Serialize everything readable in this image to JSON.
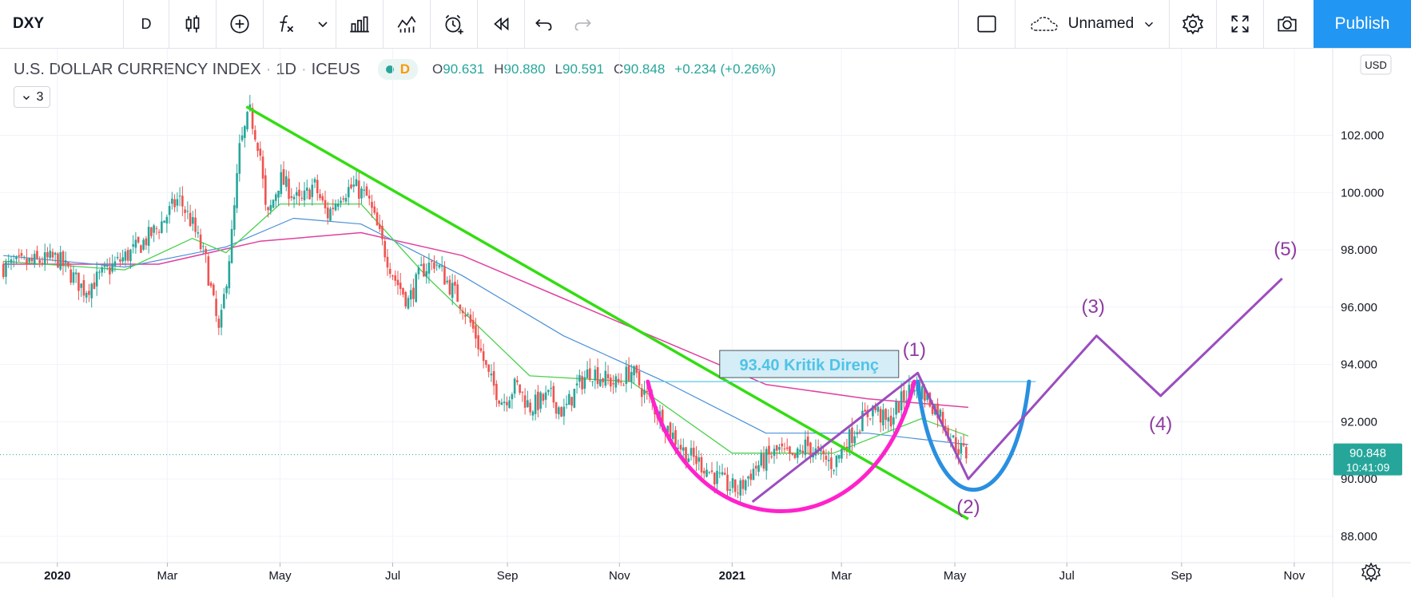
{
  "toolbar": {
    "symbol": "DXY",
    "interval": "D",
    "layout_name": "Unnamed",
    "publish_label": "Publish",
    "icons": [
      "bar-style-icon",
      "compare-add-icon",
      "indicators-icon",
      "dropdown-icon",
      "financials-icon",
      "templates-icon",
      "alert-icon",
      "replay-icon",
      "undo-icon",
      "redo-icon",
      "layout-square-icon",
      "cloud-icon",
      "settings-icon",
      "fullscreen-icon",
      "camera-icon"
    ]
  },
  "legend": {
    "title": "U.S. DOLLAR CURRENCY INDEX",
    "timeframe": "1D",
    "exchange": "ICEUS",
    "sep": "·",
    "pill_letter": "D",
    "o_label": "O",
    "o_value": "90.631",
    "h_label": "H",
    "h_value": "90.880",
    "l_label": "L",
    "l_value": "90.591",
    "c_label": "C",
    "c_value": "90.848",
    "change": "+0.234 (+0.26%)",
    "indicator_count": "3"
  },
  "chart_data": {
    "type": "candlestick",
    "currency": "USD",
    "ylim": [
      87.3,
      104.8
    ],
    "y_ticks": [
      "102.000",
      "100.000",
      "98.000",
      "96.000",
      "94.000",
      "92.000",
      "90.000",
      "88.000"
    ],
    "x_ticks": [
      "2020",
      "Mar",
      "May",
      "Jul",
      "Sep",
      "Nov",
      "2021",
      "Mar",
      "May",
      "Jul",
      "Sep",
      "Nov"
    ],
    "last_price": "90.848",
    "countdown": "10:41:09",
    "price_path": [
      [
        2019.92,
        97.4
      ],
      [
        2020.0,
        97.7
      ],
      [
        2020.04,
        96.6
      ],
      [
        2020.08,
        97.4
      ],
      [
        2020.12,
        98.1
      ],
      [
        2020.15,
        98.8
      ],
      [
        2020.18,
        99.8
      ],
      [
        2020.2,
        98.9
      ],
      [
        2020.22,
        97.6
      ],
      [
        2020.24,
        95.0
      ],
      [
        2020.26,
        98.8
      ],
      [
        2020.27,
        101.5
      ],
      [
        2020.285,
        102.8
      ],
      [
        2020.3,
        101.5
      ],
      [
        2020.31,
        99.0
      ],
      [
        2020.33,
        100.5
      ],
      [
        2020.36,
        99.6
      ],
      [
        2020.38,
        100.3
      ],
      [
        2020.4,
        99.2
      ],
      [
        2020.42,
        100.0
      ],
      [
        2020.44,
        100.2
      ],
      [
        2020.46,
        99.8
      ],
      [
        2020.48,
        98.3
      ],
      [
        2020.5,
        97.0
      ],
      [
        2020.52,
        96.2
      ],
      [
        2020.54,
        97.3
      ],
      [
        2020.56,
        97.6
      ],
      [
        2020.58,
        96.8
      ],
      [
        2020.6,
        96.1
      ],
      [
        2020.62,
        95.0
      ],
      [
        2020.64,
        93.5
      ],
      [
        2020.66,
        92.7
      ],
      [
        2020.68,
        93.3
      ],
      [
        2020.7,
        92.5
      ],
      [
        2020.73,
        92.9
      ],
      [
        2020.75,
        92.3
      ],
      [
        2020.77,
        93.2
      ],
      [
        2020.79,
        93.8
      ],
      [
        2020.81,
        93.5
      ],
      [
        2020.83,
        93.3
      ],
      [
        2020.85,
        93.8
      ],
      [
        2020.87,
        93.0
      ],
      [
        2020.89,
        92.3
      ],
      [
        2020.91,
        91.6
      ],
      [
        2020.93,
        90.9
      ],
      [
        2020.95,
        90.6
      ],
      [
        2020.97,
        90.2
      ],
      [
        2020.99,
        89.8
      ],
      [
        2021.01,
        89.6
      ],
      [
        2021.03,
        90.3
      ],
      [
        2021.05,
        90.7
      ],
      [
        2021.07,
        91.0
      ],
      [
        2021.09,
        90.6
      ],
      [
        2021.11,
        91.2
      ],
      [
        2021.13,
        90.8
      ],
      [
        2021.15,
        90.5
      ],
      [
        2021.17,
        91.3
      ],
      [
        2021.19,
        92.0
      ],
      [
        2021.21,
        92.5
      ],
      [
        2021.23,
        91.9
      ],
      [
        2021.25,
        92.7
      ],
      [
        2021.27,
        93.3
      ],
      [
        2021.29,
        92.8
      ],
      [
        2021.31,
        92.2
      ],
      [
        2021.33,
        91.2
      ],
      [
        2021.35,
        90.8
      ]
    ],
    "ma_green": [
      [
        2019.92,
        97.6
      ],
      [
        2020.1,
        97.3
      ],
      [
        2020.2,
        98.4
      ],
      [
        2020.25,
        97.9
      ],
      [
        2020.33,
        99.6
      ],
      [
        2020.45,
        99.6
      ],
      [
        2020.55,
        97.0
      ],
      [
        2020.7,
        93.6
      ],
      [
        2020.85,
        93.4
      ],
      [
        2021.0,
        90.9
      ],
      [
        2021.15,
        90.9
      ],
      [
        2021.28,
        92.1
      ],
      [
        2021.35,
        91.5
      ]
    ],
    "ma_blue": [
      [
        2019.92,
        97.8
      ],
      [
        2020.1,
        97.4
      ],
      [
        2020.25,
        98.1
      ],
      [
        2020.35,
        99.1
      ],
      [
        2020.45,
        98.9
      ],
      [
        2020.6,
        97.1
      ],
      [
        2020.75,
        95.0
      ],
      [
        2020.9,
        93.4
      ],
      [
        2021.05,
        91.6
      ],
      [
        2021.2,
        91.6
      ],
      [
        2021.35,
        91.2
      ]
    ],
    "ma_magenta": [
      [
        2019.92,
        97.5
      ],
      [
        2020.15,
        97.5
      ],
      [
        2020.3,
        98.3
      ],
      [
        2020.45,
        98.6
      ],
      [
        2020.6,
        97.8
      ],
      [
        2020.75,
        96.3
      ],
      [
        2020.9,
        94.8
      ],
      [
        2021.05,
        93.3
      ],
      [
        2021.2,
        92.8
      ],
      [
        2021.35,
        92.5
      ]
    ],
    "trendline_green": [
      [
        2020.28,
        103.0
      ],
      [
        2021.35,
        88.6
      ]
    ],
    "resistance_line": [
      [
        2020.875,
        93.4
      ],
      [
        2021.45,
        93.4
      ]
    ],
    "resistance_label": "93.40 Kritik Direnç",
    "cup_arc": {
      "x1": 2020.875,
      "x2": 2021.27,
      "top": 93.4,
      "bottom": 88.2
    },
    "handle_arc": {
      "x1": 2021.275,
      "x2": 2021.44,
      "top": 93.4,
      "bottom": 89.2
    },
    "wave_path": [
      [
        2021.03,
        89.2
      ],
      [
        2021.275,
        93.7
      ],
      [
        2021.35,
        90.0
      ],
      [
        2021.54,
        95.0
      ],
      [
        2021.635,
        92.9
      ],
      [
        2021.815,
        97.0
      ]
    ],
    "wave_labels": [
      {
        "label": "(1)",
        "x": 2021.27,
        "y": 94.3
      },
      {
        "label": "(2)",
        "x": 2021.35,
        "y": 88.8
      },
      {
        "label": "(3)",
        "x": 2021.535,
        "y": 95.8
      },
      {
        "label": "(4)",
        "x": 2021.635,
        "y": 91.7
      },
      {
        "label": "(5)",
        "x": 2021.82,
        "y": 97.8
      }
    ]
  },
  "footer": {
    "settings_icon": "gear-icon"
  }
}
